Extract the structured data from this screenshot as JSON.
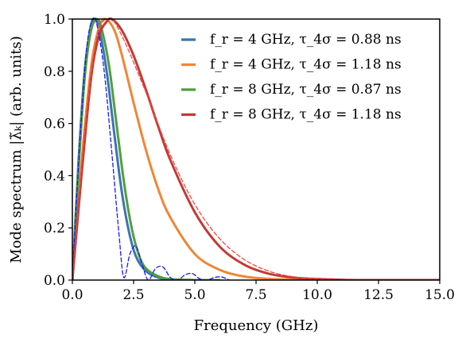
{
  "chart_data": {
    "type": "line",
    "xlabel": "Frequency (GHz)",
    "ylabel": "Mode spectrum |λ̃ₖ| (arb. units)",
    "xlim": [
      0,
      15
    ],
    "ylim": [
      0,
      1
    ],
    "x_ticks": [
      "0.0",
      "2.5",
      "5.0",
      "7.5",
      "10.0",
      "12.5",
      "15.0"
    ],
    "y_ticks": [
      "0.0",
      "0.2",
      "0.4",
      "0.6",
      "0.8",
      "1.0"
    ],
    "grid": false,
    "legend_position": "top-right",
    "series": [
      {
        "name": "f_r = 4 GHz, τ_4σ = 0.88 ns",
        "color": "#3b75af",
        "style": "solid",
        "x": [
          0,
          0.25,
          0.5,
          0.75,
          0.9,
          1.1,
          1.4,
          1.7,
          2.0,
          2.3,
          2.6,
          3.0,
          3.5,
          4.0,
          5.0,
          6.0
        ],
        "y": [
          0,
          0.45,
          0.8,
          0.97,
          1.0,
          0.96,
          0.8,
          0.57,
          0.35,
          0.19,
          0.09,
          0.035,
          0.01,
          0.003,
          0.0,
          0.0
        ]
      },
      {
        "name": "f_r = 4 GHz, τ_4σ = 1.18 ns",
        "color": "#ef8636",
        "style": "solid",
        "x": [
          0,
          0.25,
          0.5,
          0.8,
          1.1,
          1.35,
          1.7,
          2.0,
          2.5,
          3.0,
          3.5,
          4.0,
          5.0,
          6.0,
          7.0,
          8.0,
          9.0,
          10.0,
          12.0,
          15.0
        ],
        "y": [
          0,
          0.3,
          0.58,
          0.84,
          0.97,
          1.0,
          0.96,
          0.87,
          0.68,
          0.5,
          0.35,
          0.24,
          0.1,
          0.04,
          0.014,
          0.005,
          0.002,
          0.0,
          0.0,
          0.0
        ]
      },
      {
        "name": "f_r = 8 GHz, τ_4σ = 0.87 ns",
        "color": "#519e3e",
        "style": "solid",
        "x": [
          0,
          0.25,
          0.5,
          0.75,
          1.0,
          1.2,
          1.5,
          1.8,
          2.1,
          2.4,
          2.7,
          3.0,
          3.5,
          4.0,
          5.0,
          6.0
        ],
        "y": [
          0,
          0.42,
          0.77,
          0.95,
          1.0,
          0.96,
          0.82,
          0.6,
          0.38,
          0.21,
          0.1,
          0.045,
          0.015,
          0.004,
          0.0,
          0.0
        ]
      },
      {
        "name": "f_r = 8 GHz, τ_4σ = 1.18 ns",
        "color": "#c53a32",
        "style": "solid",
        "x": [
          0,
          0.25,
          0.5,
          0.8,
          1.1,
          1.4,
          1.6,
          2.0,
          2.5,
          3.0,
          3.5,
          4.0,
          5.0,
          6.0,
          7.0,
          8.0,
          9.0,
          10.0,
          11.0,
          12.0,
          15.0
        ],
        "y": [
          0,
          0.27,
          0.53,
          0.8,
          0.94,
          0.99,
          1.0,
          0.96,
          0.86,
          0.73,
          0.59,
          0.46,
          0.26,
          0.13,
          0.06,
          0.025,
          0.01,
          0.004,
          0.001,
          0.0,
          0.0
        ]
      },
      {
        "name": "",
        "color": "#1a1aff",
        "style": "dashed",
        "x": [
          0,
          0.3,
          0.6,
          0.85,
          1.0,
          1.3,
          1.6,
          1.9,
          2.1,
          2.35,
          2.6,
          2.85,
          3.1,
          3.4,
          3.7,
          4.0,
          4.3,
          4.6,
          4.9,
          5.2,
          5.5,
          5.8,
          6.1,
          6.4
        ],
        "y": [
          0,
          0.52,
          0.9,
          1.0,
          0.98,
          0.8,
          0.5,
          0.18,
          0.01,
          0.1,
          0.13,
          0.06,
          0.0,
          0.045,
          0.05,
          0.01,
          0.0,
          0.02,
          0.025,
          0.005,
          0.0,
          0.01,
          0.012,
          0.0
        ]
      },
      {
        "name": "",
        "color": "#ef4a45",
        "style": "dashed",
        "x": [
          0,
          0.5,
          1.0,
          1.5,
          2.0,
          3.0,
          4.0,
          5.0,
          6.0,
          7.0,
          8.0,
          9.0,
          10.0,
          12.0
        ],
        "y": [
          0,
          0.56,
          0.93,
          1.0,
          0.94,
          0.72,
          0.48,
          0.29,
          0.16,
          0.08,
          0.035,
          0.013,
          0.004,
          0.0
        ]
      }
    ],
    "legend": [
      {
        "text": "f_r = 4 GHz, τ_4σ = 0.88 ns",
        "color": "#3b75af"
      },
      {
        "text": "f_r = 4 GHz, τ_4σ = 1.18 ns",
        "color": "#ef8636"
      },
      {
        "text": "f_r = 8 GHz, τ_4σ = 0.87 ns",
        "color": "#519e3e"
      },
      {
        "text": "f_r = 8 GHz, τ_4σ = 1.18 ns",
        "color": "#c53a32"
      }
    ]
  }
}
